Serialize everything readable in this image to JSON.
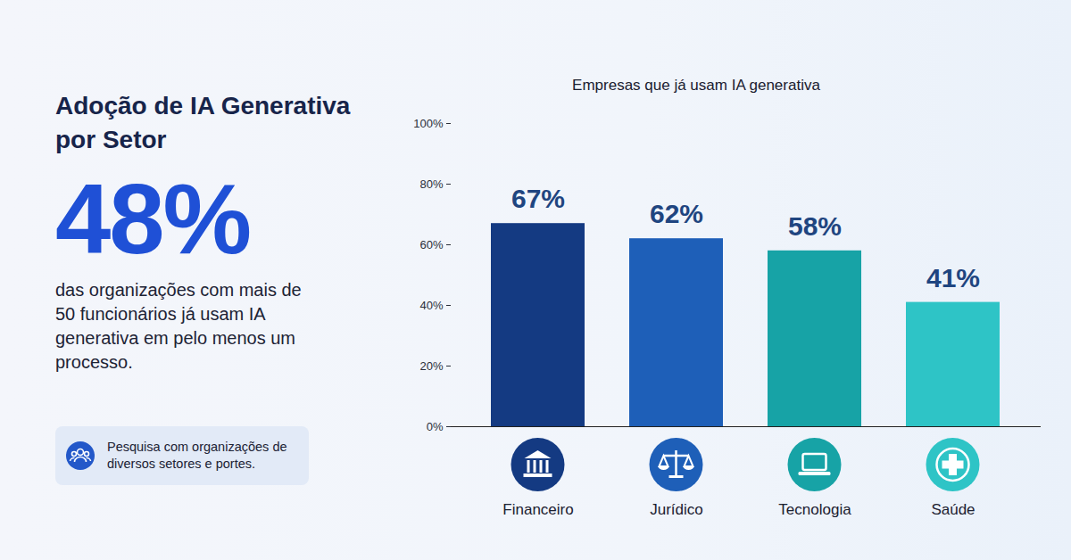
{
  "chart_data": {
    "type": "bar",
    "title": "Empresas que já usam IA generativa",
    "categories": [
      "Financeiro",
      "Jurídico",
      "Tecnologia",
      "Saúde"
    ],
    "values": [
      67,
      62,
      58,
      41
    ],
    "value_labels": [
      "67%",
      "62%",
      "58%",
      "41%"
    ],
    "colors": [
      "#143a82",
      "#1e5fb8",
      "#17a3a6",
      "#2ec4c6"
    ],
    "ylim": [
      0,
      100
    ],
    "yticks": [
      {
        "value": 0,
        "label": "0%"
      },
      {
        "value": 20,
        "label": "20%"
      },
      {
        "value": 40,
        "label": "40%"
      },
      {
        "value": 60,
        "label": "60%"
      },
      {
        "value": 80,
        "label": "80%"
      },
      {
        "value": 100,
        "label": "100%"
      }
    ],
    "data_labels": true,
    "grid": false
  },
  "panel": {
    "title": "Adoção de IA Generativa por Setor",
    "stat": "48%",
    "description": "das organizações com mais de 50 funcionários já usam IA generativa em pelo menos um processo.",
    "note": "Pesquisa com organizações de diversos setores e portes."
  }
}
